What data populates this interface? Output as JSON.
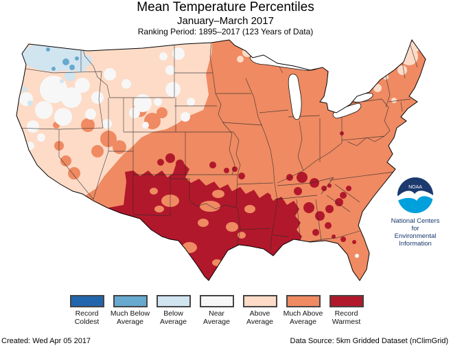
{
  "title": "Mean Temperature Percentiles",
  "subtitle": "January–March 2017",
  "ranking_period": "Ranking Period: 1895–2017 (123 Years of Data)",
  "legend": {
    "items": [
      {
        "label": "Record Coldest",
        "color": "#2166ac"
      },
      {
        "label": "Much Below Average",
        "color": "#67a9cf"
      },
      {
        "label": "Below Average",
        "color": "#d1e5f0"
      },
      {
        "label": "Near Average",
        "color": "#f7f7f7"
      },
      {
        "label": "Above Average",
        "color": "#fddbc7"
      },
      {
        "label": "Much Above Average",
        "color": "#ef8a62"
      },
      {
        "label": "Record Warmest",
        "color": "#b2182b"
      }
    ]
  },
  "footer": {
    "created": "Created: Wed Apr 05 2017",
    "data_source": "Data Source: 5km Gridded Dataset (nClimGrid)"
  },
  "logo": {
    "org": "NOAA",
    "caption_lines": [
      "National Centers for",
      "Environmental",
      "Information"
    ],
    "navy": "#1c3a6e",
    "cyan": "#00a0dc"
  },
  "map_data": {
    "type": "choropleth",
    "region": "Contiguous United States",
    "variable": "Mean Temperature Percentiles",
    "period": "January–March 2017",
    "baseline": "1895–2017 (123 Years of Data)",
    "categories": [
      "Record Coldest",
      "Much Below Average",
      "Below Average",
      "Near Average",
      "Above Average",
      "Much Above Average",
      "Record Warmest"
    ],
    "regional_pattern": [
      {
        "area": "Washington and northern Idaho",
        "category": "Below Average"
      },
      {
        "area": "Scattered spots in Washington",
        "category": "Much Below Average"
      },
      {
        "area": "Oregon, southern Idaho, northern Nevada, northern California patches",
        "category": "Near Average"
      },
      {
        "area": "California, Nevada, Utah, Montana, Wyoming, Dakotas, western Nebraska, northern Maine",
        "category": "Above Average"
      },
      {
        "area": "Midwest, Great Lakes, Northeast, Southeast, Florida, Arizona, central Plains",
        "category": "Much Above Average"
      },
      {
        "area": "New Mexico, Texas, Oklahoma, Louisiana, Mississippi, west Tennessee, patches in Alabama/Georgia/South Carolina/Colorado",
        "category": "Record Warmest"
      }
    ]
  }
}
